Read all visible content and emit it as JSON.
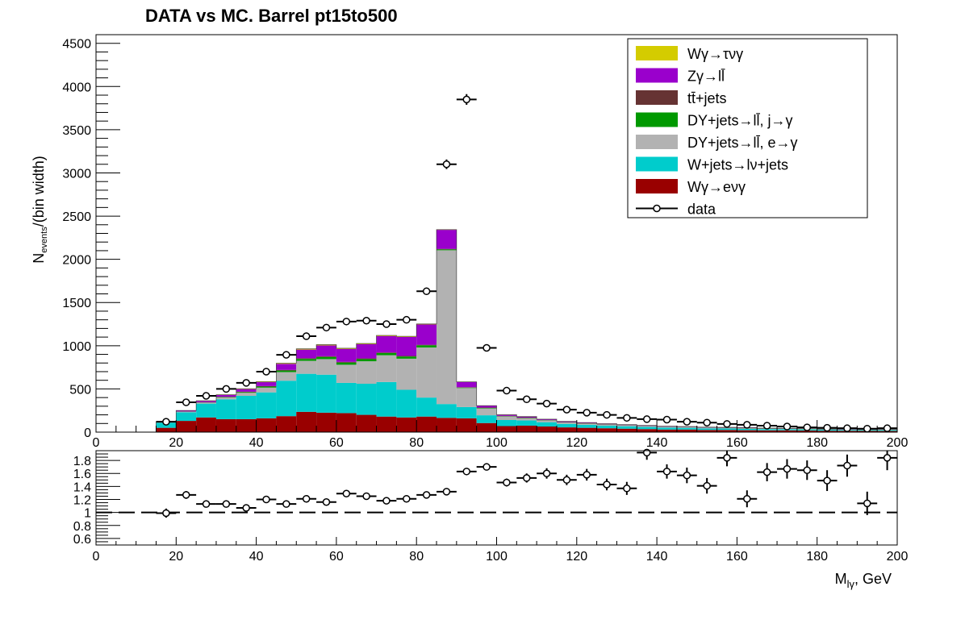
{
  "chart_data": [
    {
      "type": "bar",
      "title": "DATA vs MC. Barrel  pt15to500",
      "ylabel_main": "N",
      "ylabel_sub": "events",
      "ylabel_rest": "/(bin width)",
      "xlim": [
        0,
        200
      ],
      "ylim": [
        0,
        4600
      ],
      "x_ticks": [
        "0",
        "20",
        "40",
        "60",
        "80",
        "100",
        "120",
        "140",
        "160",
        "180",
        "200"
      ],
      "y_ticks": [
        "0",
        "500",
        "1000",
        "1500",
        "2000",
        "2500",
        "3000",
        "3500",
        "4000",
        "4500"
      ],
      "bin_width": 5,
      "bin_edges_start": 15,
      "stack_order": [
        "Wg_enug",
        "Wjets",
        "DY_egam",
        "DY_jgam",
        "ttjets",
        "Zgamma",
        "Wg_taunug"
      ],
      "series": [
        {
          "key": "Wg_taunug",
          "name": "Wγ→τνγ",
          "color": "#d4cc00",
          "values": [
            0,
            2,
            3,
            4,
            5,
            6,
            8,
            9,
            9,
            8,
            8,
            8,
            7,
            6,
            3,
            2,
            2,
            2,
            2,
            1,
            1,
            1,
            1,
            1,
            1,
            1,
            1,
            1,
            1,
            1,
            1,
            1,
            1,
            1,
            1,
            1,
            1
          ]
        },
        {
          "key": "Zgamma",
          "name": "Zγ→ll̄",
          "color": "#9a00cc",
          "values": [
            5,
            10,
            15,
            20,
            30,
            45,
            70,
            100,
            125,
            150,
            165,
            190,
            220,
            235,
            220,
            60,
            20,
            12,
            10,
            8,
            7,
            6,
            6,
            5,
            5,
            5,
            4,
            4,
            4,
            4,
            3,
            3,
            3,
            3,
            3,
            3,
            3
          ]
        },
        {
          "key": "ttjets",
          "name": "tt̄+jets",
          "color": "#663333",
          "values": [
            1,
            2,
            3,
            4,
            5,
            6,
            7,
            8,
            8,
            8,
            8,
            7,
            7,
            6,
            6,
            5,
            5,
            4,
            4,
            3,
            3,
            3,
            3,
            2,
            2,
            2,
            2,
            2,
            2,
            2,
            2,
            1,
            1,
            1,
            1,
            1,
            1
          ]
        },
        {
          "key": "DY_jgam",
          "name": "DY+jets→ll̄, j→γ",
          "color": "#009900",
          "values": [
            1,
            2,
            3,
            5,
            8,
            12,
            18,
            22,
            25,
            25,
            25,
            25,
            25,
            25,
            10,
            5,
            5,
            4,
            4,
            3,
            3,
            3,
            3,
            2,
            2,
            2,
            2,
            2,
            2,
            2,
            2,
            2,
            2,
            2,
            1,
            1,
            1
          ]
        },
        {
          "key": "DY_egam",
          "name": "DY+jets→ll̄, e→γ",
          "color": "#b2b2b2",
          "values": [
            2,
            5,
            10,
            20,
            35,
            55,
            100,
            150,
            180,
            210,
            260,
            310,
            360,
            580,
            1780,
            220,
            80,
            40,
            25,
            20,
            15,
            12,
            10,
            9,
            8,
            7,
            6,
            6,
            5,
            5,
            4,
            4,
            4,
            3,
            3,
            3,
            3
          ]
        },
        {
          "key": "Wjets",
          "name": "W+jets→lν+jets",
          "color": "#00cccc",
          "values": [
            60,
            100,
            160,
            230,
            270,
            300,
            410,
            440,
            440,
            350,
            360,
            400,
            320,
            220,
            160,
            130,
            90,
            70,
            60,
            50,
            40,
            35,
            30,
            28,
            25,
            22,
            20,
            18,
            17,
            16,
            15,
            14,
            13,
            12,
            11,
            10,
            10
          ]
        },
        {
          "key": "Wg_enug",
          "name": "Wγ→eνγ",
          "color": "#990000",
          "values": [
            50,
            130,
            170,
            150,
            150,
            160,
            185,
            235,
            225,
            220,
            200,
            180,
            170,
            180,
            165,
            160,
            105,
            70,
            75,
            65,
            55,
            50,
            45,
            40,
            35,
            30,
            30,
            25,
            25,
            22,
            20,
            20,
            18,
            16,
            15,
            14,
            13
          ]
        }
      ],
      "data_series": {
        "name": "data",
        "values": [
          120,
          345,
          420,
          500,
          570,
          700,
          895,
          1110,
          1210,
          1280,
          1290,
          1250,
          1300,
          1630,
          3100,
          3850,
          975,
          480,
          380,
          330,
          260,
          225,
          200,
          165,
          150,
          145,
          120,
          110,
          95,
          85,
          75,
          65,
          55,
          50,
          45,
          40,
          45
        ]
      },
      "legend": {
        "placement": "top-right"
      }
    },
    {
      "type": "scatter",
      "xlim": [
        0,
        200
      ],
      "ylim": [
        0.5,
        1.95
      ],
      "x_ticks": [
        "0",
        "20",
        "40",
        "60",
        "80",
        "100",
        "120",
        "140",
        "160",
        "180",
        "200"
      ],
      "y_ticks": [
        "0.6",
        "0.8",
        "1",
        "1.2",
        "1.4",
        "1.6",
        "1.8"
      ],
      "xlabel_main": "M",
      "xlabel_sub": "lγ",
      "xlabel_rest": ", GeV",
      "reference_line": 1,
      "x": [
        17.5,
        22.5,
        27.5,
        32.5,
        37.5,
        42.5,
        47.5,
        52.5,
        57.5,
        62.5,
        67.5,
        72.5,
        77.5,
        82.5,
        87.5,
        92.5,
        97.5,
        102.5,
        107.5,
        112.5,
        117.5,
        122.5,
        127.5,
        132.5,
        137.5,
        142.5,
        147.5,
        152.5,
        157.5,
        162.5,
        167.5,
        172.5,
        177.5,
        182.5,
        187.5,
        192.5,
        197.5
      ],
      "values": [
        0.99,
        1.27,
        1.13,
        1.13,
        1.07,
        1.2,
        1.13,
        1.21,
        1.16,
        1.29,
        1.25,
        1.18,
        1.21,
        1.27,
        1.32,
        1.63,
        1.7,
        1.46,
        1.53,
        1.6,
        1.5,
        1.58,
        1.43,
        1.37,
        1.92,
        1.63,
        1.57,
        1.41,
        1.84,
        1.21,
        1.62,
        1.67,
        1.65,
        1.49,
        1.72,
        1.14,
        1.84
      ],
      "errors": [
        0.07,
        0.06,
        0.05,
        0.05,
        0.04,
        0.04,
        0.03,
        0.03,
        0.03,
        0.03,
        0.03,
        0.03,
        0.03,
        0.03,
        0.02,
        0.02,
        0.04,
        0.06,
        0.07,
        0.08,
        0.08,
        0.09,
        0.09,
        0.1,
        0.11,
        0.11,
        0.12,
        0.12,
        0.13,
        0.13,
        0.14,
        0.15,
        0.15,
        0.16,
        0.17,
        0.18,
        0.19
      ]
    }
  ]
}
